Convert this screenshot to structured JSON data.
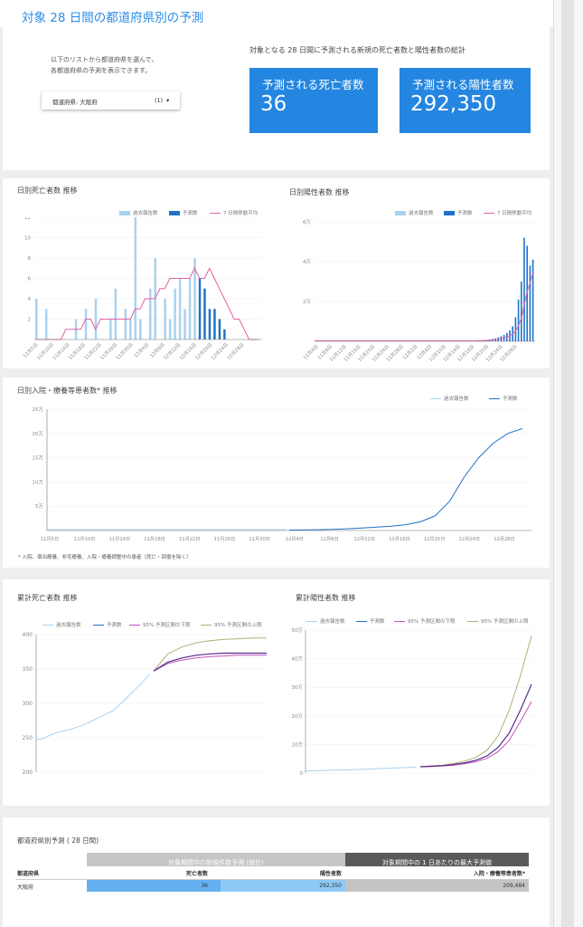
{
  "header": {
    "title": "対象 28 日間の都道府県別の予測"
  },
  "intro": {
    "text_line1": "以下のリストから都道府県を選んで、",
    "text_line2": "各都道府県の予測を表示できます。",
    "dropdown_label": "都道府県: 大阪府",
    "dropdown_count": "(1)"
  },
  "totals": {
    "heading": "対象となる 28 日間に予測される新規の死亡者数と陽性者数の総計",
    "deaths_label": "予測される死亡者数",
    "deaths_value": "36",
    "cases_label": "予測される陽性者数",
    "cases_value": "292,350"
  },
  "colors": {
    "accent": "#2486e0",
    "reported": "#a8d2f0",
    "forecast": "#1f72c8",
    "moving_avg": "#e060a8",
    "ci_low": "#c050c0",
    "ci_high": "#b0b07a",
    "cum_forecast": "#5a2a8a"
  },
  "legend": {
    "reported": "過去報告数",
    "forecast": "予測数",
    "moving_avg": "7 日間移動平均",
    "ci_low": "95% 予測区間の下限",
    "ci_high": "95% 予測区間の上限"
  },
  "daily_deaths": {
    "title": "日別死亡者数 推移",
    "chart_data": {
      "type": "bar",
      "title": "日別死亡者数 推移",
      "ylim": [
        0,
        12
      ],
      "y_ticks": [
        "2",
        "4",
        "6",
        "8",
        "10",
        "12"
      ],
      "x_ticks": [
        "11月5日",
        "11月10日",
        "11月14日",
        "11月18日",
        "11月22日",
        "11月26日",
        "11月30日",
        "12月4日",
        "12月8日",
        "12月12日",
        "12月16日",
        "12月20日",
        "12月24日",
        "12月28日"
      ],
      "reported": [
        4,
        0,
        3,
        0,
        0,
        0,
        0,
        0,
        2,
        0,
        3,
        0,
        4,
        0,
        0,
        2,
        5,
        0,
        3,
        2,
        12,
        2,
        0,
        5,
        8,
        0,
        4,
        2,
        5,
        6,
        3,
        6,
        8
      ],
      "forecast": [
        6,
        5,
        3,
        3,
        2,
        1,
        0
      ],
      "moving_avg": [
        0,
        0,
        0,
        0,
        0,
        0,
        1,
        1,
        1,
        1,
        2,
        2,
        1,
        2,
        2,
        2,
        2,
        2,
        2,
        2,
        3,
        3,
        4,
        4,
        4,
        5,
        5,
        6,
        6,
        6,
        6,
        6,
        7,
        6,
        6,
        7,
        6,
        5,
        4,
        3,
        2,
        2,
        1,
        0,
        0,
        0
      ]
    }
  },
  "daily_cases": {
    "title": "日別陽性者数 推移",
    "chart_data": {
      "type": "bar",
      "title": "日別陽性者数 推移",
      "ylim": [
        0,
        60000
      ],
      "y_ticks": [
        "2万",
        "4万",
        "6万"
      ],
      "x_ticks": [
        "11月4日",
        "11月8日",
        "11月12日",
        "11月16日",
        "11月20日",
        "11月24日",
        "11月28日",
        "12月2日",
        "12月6日",
        "12月10日",
        "12月14日",
        "12月18日",
        "12月20日",
        "12月24日",
        "12月28日"
      ],
      "forecast": [
        300,
        400,
        500,
        700,
        900,
        1200,
        1500,
        2000,
        2500,
        3200,
        4200,
        5500,
        7500,
        12000,
        21000,
        30000,
        52000,
        48000,
        38000,
        41000
      ]
    }
  },
  "hospital": {
    "title": "日別入院・療養等患者数* 推移",
    "footnote": "* 入院、宿泊療養、非宅療養、入院・療養調整中の患者（死亡・回復を除く）",
    "chart_data": {
      "type": "line",
      "title": "日別入院・療養等患者数* 推移",
      "ylim": [
        0,
        250000
      ],
      "y_ticks": [
        "5万",
        "10万",
        "15万",
        "20万",
        "25万"
      ],
      "x_ticks": [
        "11月5日",
        "11月10日",
        "11月14日",
        "11月18日",
        "11月22日",
        "11月26日",
        "11月30日",
        "12月4日",
        "12月8日",
        "12月12日",
        "12月16日",
        "12月20日",
        "12月24日",
        "12月28日"
      ],
      "forecast": [
        1000,
        1200,
        1600,
        2200,
        3500,
        5000,
        7000,
        9000,
        12000,
        18000,
        30000,
        60000,
        110000,
        150000,
        180000,
        200000,
        210000
      ]
    }
  },
  "cum_deaths": {
    "title": "累計死亡者数 推移",
    "chart_data": {
      "type": "line",
      "title": "累計死亡者数 推移",
      "ylim": [
        200,
        400
      ],
      "y_ticks": [
        "200",
        "250",
        "300",
        "350",
        "400"
      ],
      "reported": [
        247,
        249,
        254,
        258,
        260,
        263,
        266,
        270,
        275,
        280,
        285,
        290,
        300,
        310,
        320,
        330,
        342
      ],
      "forecast": [
        347,
        360,
        366,
        370,
        372,
        373,
        373,
        373,
        373
      ],
      "ci_low": [
        347,
        358,
        363,
        366,
        368,
        369,
        370,
        370,
        370
      ],
      "ci_high": [
        347,
        372,
        382,
        388,
        391,
        393,
        394,
        395,
        395
      ]
    }
  },
  "cum_cases": {
    "title": "累計陽性者数 推移",
    "chart_data": {
      "type": "line",
      "title": "累計陽性者数 推移",
      "ylim": [
        0,
        500000
      ],
      "y_ticks": [
        "0",
        "10万",
        "20万",
        "30万",
        "40万",
        "50万"
      ],
      "reported": [
        8000,
        9000,
        10000,
        11000,
        13000,
        15000,
        17000,
        19000,
        21000
      ],
      "forecast": [
        22000,
        24000,
        26000,
        30000,
        36000,
        45000,
        60000,
        90000,
        140000,
        220000,
        310000
      ],
      "ci_low": [
        22000,
        23000,
        25000,
        28000,
        33000,
        40000,
        52000,
        75000,
        115000,
        180000,
        250000
      ],
      "ci_high": [
        22000,
        25000,
        28000,
        34000,
        42000,
        55000,
        80000,
        130000,
        220000,
        340000,
        480000
      ]
    }
  },
  "table": {
    "title": "都道府県別予測 ( 28 日間)",
    "group1": "対象期間中の新規件数予測 (総計)",
    "group2": "対象期間中の 1 日あたりの最大予測値",
    "col_pref": "都道府県",
    "col_deaths": "死亡者数",
    "col_cases": "陽性者数",
    "col_hosp": "入院・療養等患者数*",
    "row_pref": "大阪府",
    "row_deaths": "36",
    "row_cases": "292,350",
    "row_hosp": "209,484"
  }
}
